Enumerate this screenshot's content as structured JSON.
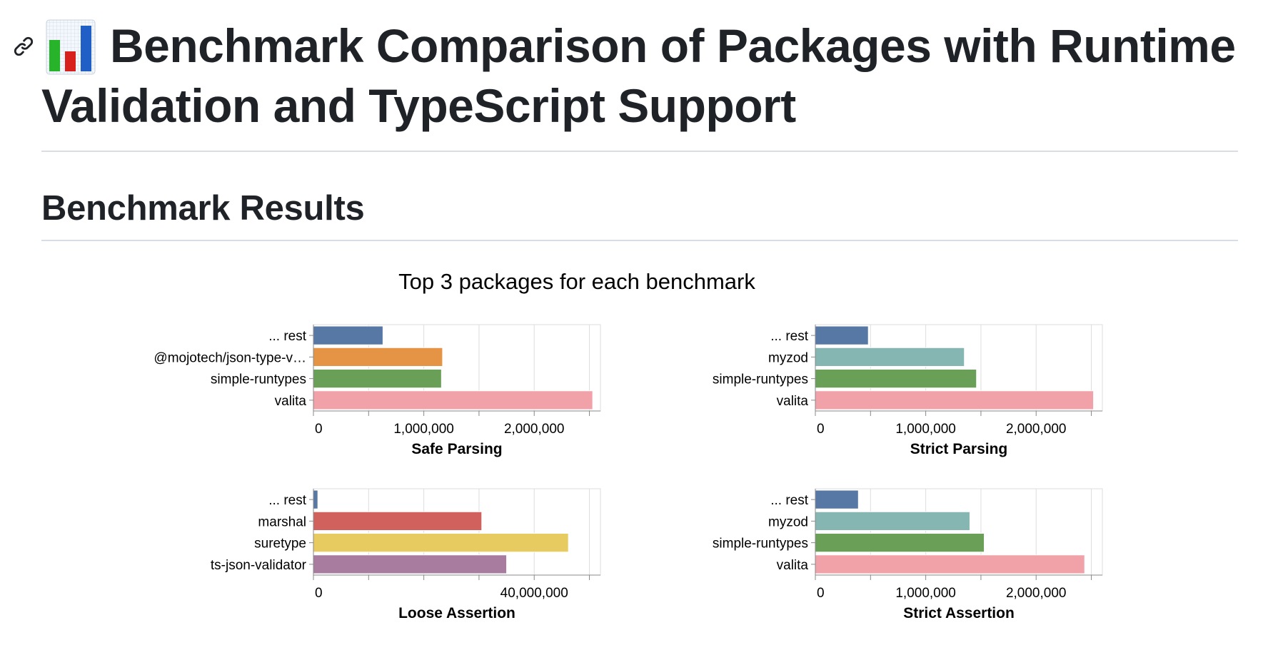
{
  "page": {
    "title": "Benchmark Comparison of Packages with Runtime Validation and TypeScript Support",
    "section_title": "Benchmark Results",
    "link_icon": "link-icon",
    "title_icon": "bar-chart-icon"
  },
  "chart_data": {
    "type": "bar",
    "title": "Top 3 packages for each benchmark",
    "colors": {
      "... rest": "#5778a4",
      "@mojotech/json-type-validation": "#e49444",
      "simple-runtypes": "#6a9f58",
      "valita": "#f1a2a9",
      "myzod": "#85b6b2",
      "marshal": "#d1615d",
      "suretype": "#e7ca60",
      "ts-json-validator": "#a87c9f"
    },
    "panels": [
      {
        "name": "Safe Parsing",
        "xlabel": "Safe Parsing",
        "xlim": [
          0,
          2600000
        ],
        "ticks": [
          0,
          1000000,
          2000000
        ],
        "tick_labels": [
          "0",
          "1,000,000",
          "2,000,000"
        ],
        "minor_ticks": [
          500000,
          1500000,
          2500000
        ],
        "categories": [
          "... rest",
          "@mojotech/json-type-v…",
          "simple-runtypes",
          "valita"
        ],
        "keys": [
          "... rest",
          "@mojotech/json-type-validation",
          "simple-runtypes",
          "valita"
        ],
        "values": [
          630000,
          1170000,
          1160000,
          2530000
        ]
      },
      {
        "name": "Strict Parsing",
        "xlabel": "Strict Parsing",
        "xlim": [
          0,
          2600000
        ],
        "ticks": [
          0,
          1000000,
          2000000
        ],
        "tick_labels": [
          "0",
          "1,000,000",
          "2,000,000"
        ],
        "minor_ticks": [
          500000,
          1500000,
          2500000
        ],
        "categories": [
          "... rest",
          "myzod",
          "simple-runtypes",
          "valita"
        ],
        "keys": [
          "... rest",
          "myzod",
          "simple-runtypes",
          "valita"
        ],
        "values": [
          480000,
          1350000,
          1460000,
          2520000
        ]
      },
      {
        "name": "Loose Assertion",
        "xlabel": "Loose Assertion",
        "xlim": [
          0,
          52000000
        ],
        "ticks": [
          0,
          40000000
        ],
        "tick_labels": [
          "0",
          "40,000,000"
        ],
        "minor_ticks": [
          10000000,
          20000000,
          30000000,
          50000000
        ],
        "categories": [
          "... rest",
          "marshal",
          "suretype",
          "ts-json-validator"
        ],
        "keys": [
          "... rest",
          "marshal",
          "suretype",
          "ts-json-validator"
        ],
        "values": [
          800000,
          30500000,
          46200000,
          35000000
        ]
      },
      {
        "name": "Strict Assertion",
        "xlabel": "Strict Assertion",
        "xlim": [
          0,
          2600000
        ],
        "ticks": [
          0,
          1000000,
          2000000
        ],
        "tick_labels": [
          "0",
          "1,000,000",
          "2,000,000"
        ],
        "minor_ticks": [
          500000,
          1500000,
          2500000
        ],
        "categories": [
          "... rest",
          "myzod",
          "simple-runtypes",
          "valita"
        ],
        "keys": [
          "... rest",
          "myzod",
          "simple-runtypes",
          "valita"
        ],
        "values": [
          390000,
          1400000,
          1530000,
          2440000
        ]
      }
    ]
  }
}
